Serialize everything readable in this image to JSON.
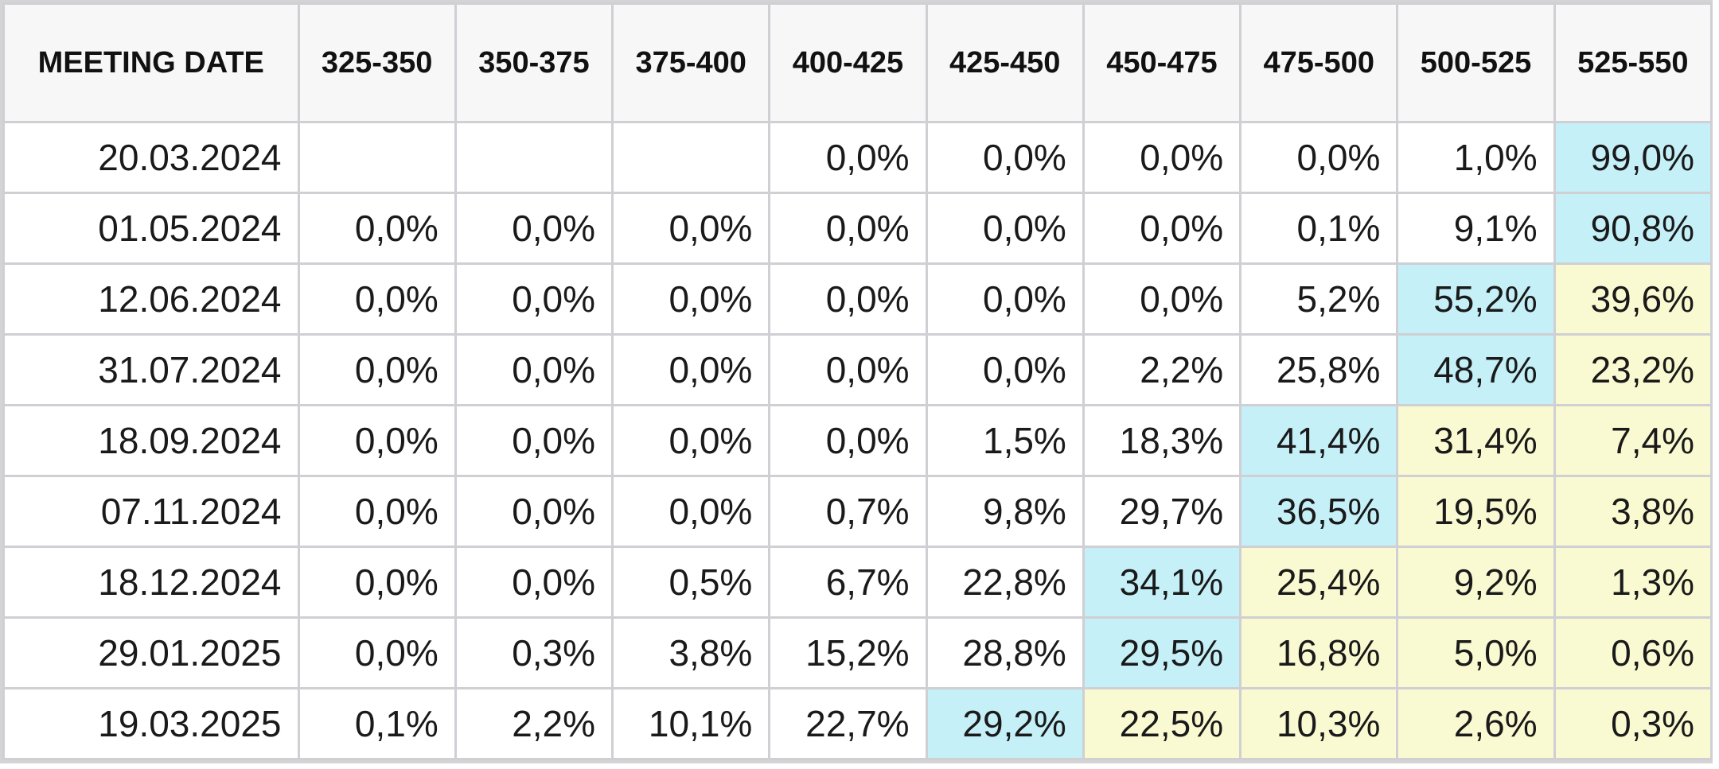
{
  "chart_data": {
    "type": "table",
    "header": {
      "date_label": "MEETING DATE",
      "ranges": [
        "325-350",
        "350-375",
        "375-400",
        "400-425",
        "425-450",
        "450-475",
        "475-500",
        "500-525",
        "525-550"
      ]
    },
    "rows": [
      {
        "date": "20.03.2024",
        "values": [
          "",
          "",
          "",
          "0,0%",
          "0,0%",
          "0,0%",
          "0,0%",
          "1,0%",
          "99,0%"
        ]
      },
      {
        "date": "01.05.2024",
        "values": [
          "0,0%",
          "0,0%",
          "0,0%",
          "0,0%",
          "0,0%",
          "0,0%",
          "0,1%",
          "9,1%",
          "90,8%"
        ]
      },
      {
        "date": "12.06.2024",
        "values": [
          "0,0%",
          "0,0%",
          "0,0%",
          "0,0%",
          "0,0%",
          "0,0%",
          "5,2%",
          "55,2%",
          "39,6%"
        ]
      },
      {
        "date": "31.07.2024",
        "values": [
          "0,0%",
          "0,0%",
          "0,0%",
          "0,0%",
          "0,0%",
          "2,2%",
          "25,8%",
          "48,7%",
          "23,2%"
        ]
      },
      {
        "date": "18.09.2024",
        "values": [
          "0,0%",
          "0,0%",
          "0,0%",
          "0,0%",
          "1,5%",
          "18,3%",
          "41,4%",
          "31,4%",
          "7,4%"
        ]
      },
      {
        "date": "07.11.2024",
        "values": [
          "0,0%",
          "0,0%",
          "0,0%",
          "0,7%",
          "9,8%",
          "29,7%",
          "36,5%",
          "19,5%",
          "3,8%"
        ]
      },
      {
        "date": "18.12.2024",
        "values": [
          "0,0%",
          "0,0%",
          "0,5%",
          "6,7%",
          "22,8%",
          "34,1%",
          "25,4%",
          "9,2%",
          "1,3%"
        ]
      },
      {
        "date": "29.01.2025",
        "values": [
          "0,0%",
          "0,3%",
          "3,8%",
          "15,2%",
          "28,8%",
          "29,5%",
          "16,8%",
          "5,0%",
          "0,6%"
        ]
      },
      {
        "date": "19.03.2025",
        "values": [
          "0,1%",
          "2,2%",
          "10,1%",
          "22,7%",
          "29,2%",
          "22,5%",
          "10,3%",
          "2,6%",
          "0,3%"
        ]
      }
    ],
    "highlight_colors": {
      "most_likely": "#c5f0f8",
      "above_most_likely": "#fafad2"
    },
    "most_likely_column_index": [
      8,
      8,
      7,
      7,
      6,
      6,
      5,
      5,
      4
    ]
  }
}
